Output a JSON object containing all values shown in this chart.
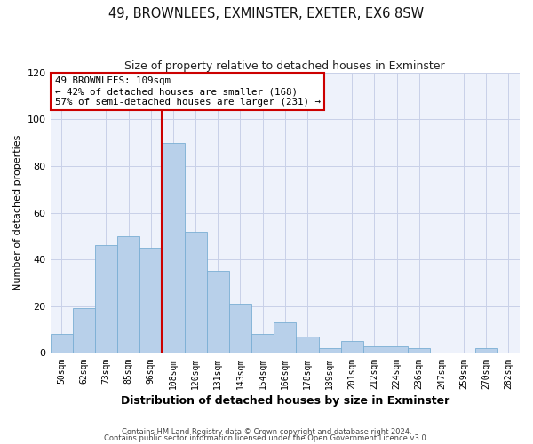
{
  "title": "49, BROWNLEES, EXMINSTER, EXETER, EX6 8SW",
  "subtitle": "Size of property relative to detached houses in Exminster",
  "xlabel": "Distribution of detached houses by size in Exminster",
  "ylabel": "Number of detached properties",
  "bin_labels": [
    "50sqm",
    "62sqm",
    "73sqm",
    "85sqm",
    "96sqm",
    "108sqm",
    "120sqm",
    "131sqm",
    "143sqm",
    "154sqm",
    "166sqm",
    "178sqm",
    "189sqm",
    "201sqm",
    "212sqm",
    "224sqm",
    "236sqm",
    "247sqm",
    "259sqm",
    "270sqm",
    "282sqm"
  ],
  "bar_values": [
    8,
    19,
    46,
    50,
    45,
    90,
    52,
    35,
    21,
    8,
    13,
    7,
    2,
    5,
    3,
    3,
    2,
    0,
    0,
    2,
    0
  ],
  "bar_color": "#b8d0ea",
  "bar_edge_color": "#7aaed4",
  "vline_index": 5,
  "vline_color": "#cc0000",
  "ylim": [
    0,
    120
  ],
  "yticks": [
    0,
    20,
    40,
    60,
    80,
    100,
    120
  ],
  "annotation_line1": "49 BROWNLEES: 109sqm",
  "annotation_line2": "← 42% of detached houses are smaller (168)",
  "annotation_line3": "57% of semi-detached houses are larger (231) →",
  "annotation_box_color": "#cc0000",
  "footnote1": "Contains HM Land Registry data © Crown copyright and database right 2024.",
  "footnote2": "Contains public sector information licensed under the Open Government Licence v3.0.",
  "background_color": "#eef2fb",
  "grid_color": "#c8d0e8"
}
